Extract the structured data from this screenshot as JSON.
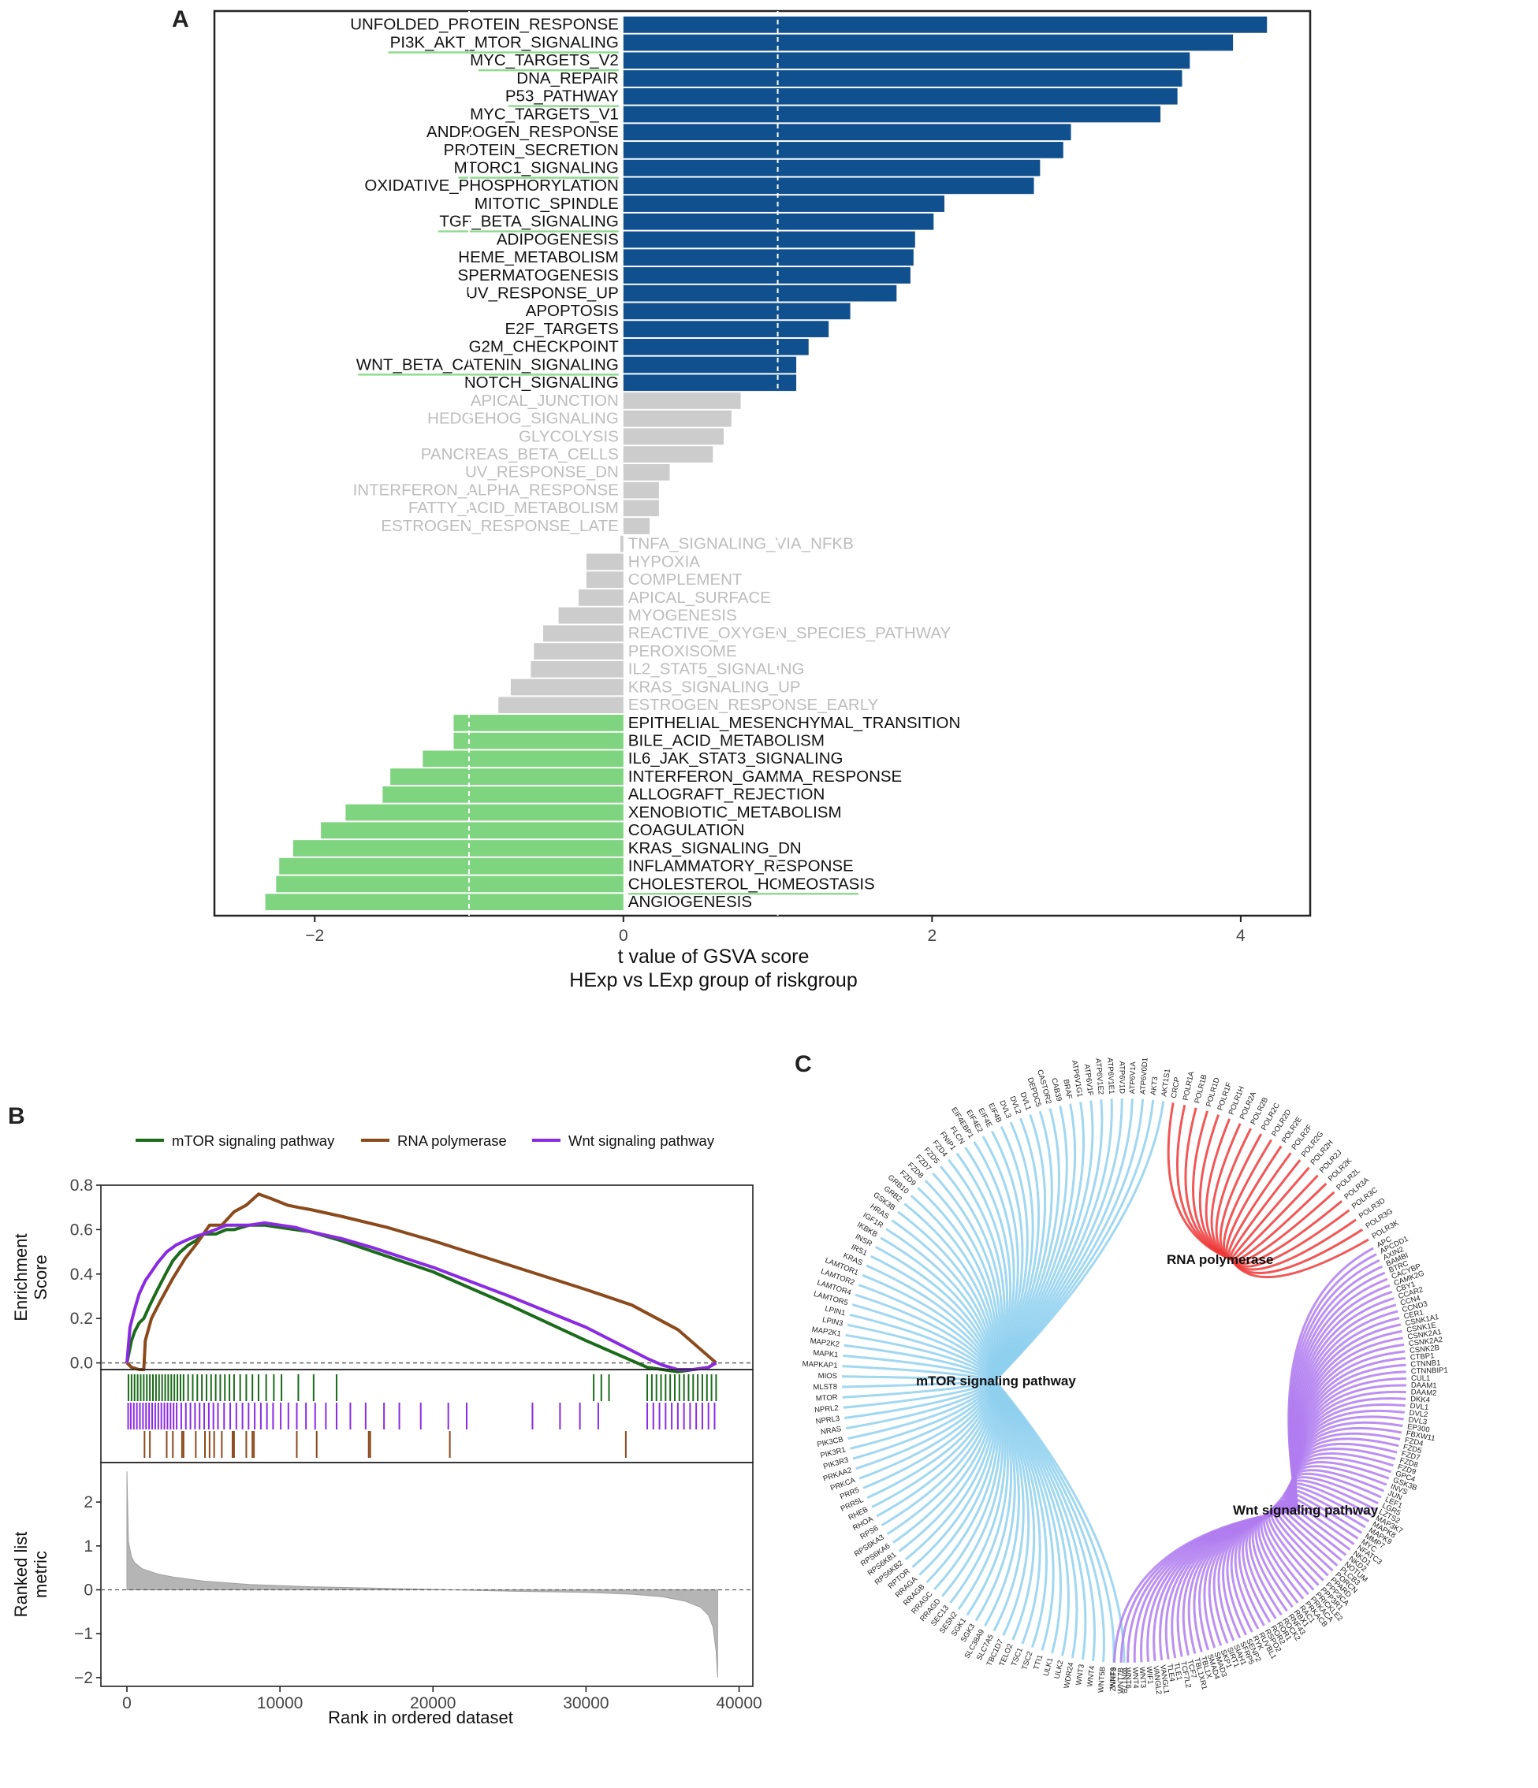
{
  "panels": {
    "a": "A",
    "b": "B",
    "c": "C"
  },
  "colors": {
    "up": "#11508f",
    "down": "#7fd47f",
    "ns": "#cccccc",
    "ns_text": "#bdbdbd",
    "mtor": "#1b6b1b",
    "rna": "#8b4a1c",
    "wnt": "#8a2be2",
    "c_mtor": "#8fd0ee",
    "c_rna": "#ee3a3a",
    "c_wnt": "#b07cf0",
    "underline": "#8fdc8f"
  },
  "chart_data": [
    {
      "type": "bar",
      "orientation": "horizontal",
      "xlabel": "t value of GSVA score",
      "xlabel2": "HExp vs LExp group of riskgroup",
      "xlim": [
        -2.65,
        4.45
      ],
      "xticks": [
        -2,
        0,
        2,
        4
      ],
      "tick_labels": [
        "−2",
        "0",
        "2",
        "4"
      ],
      "threshold_lines": [
        -1,
        1
      ],
      "categories": [
        "UNFOLDED_PROTEIN_RESPONSE",
        "PI3K_AKT_MTOR_SIGNALING",
        "MYC_TARGETS_V2",
        "DNA_REPAIR",
        "P53_PATHWAY",
        "MYC_TARGETS_V1",
        "ANDROGEN_RESPONSE",
        "PROTEIN_SECRETION",
        "MTORC1_SIGNALING",
        "OXIDATIVE_PHOSPHORYLATION",
        "MITOTIC_SPINDLE",
        "TGF_BETA_SIGNALING",
        "ADIPOGENESIS",
        "HEME_METABOLISM",
        "SPERMATOGENESIS",
        "UV_RESPONSE_UP",
        "APOPTOSIS",
        "E2F_TARGETS",
        "G2M_CHECKPOINT",
        "WNT_BETA_CATENIN_SIGNALING",
        "NOTCH_SIGNALING",
        "APICAL_JUNCTION",
        "HEDGEHOG_SIGNALING",
        "GLYCOLYSIS",
        "PANCREAS_BETA_CELLS",
        "UV_RESPONSE_DN",
        "INTERFERON_ALPHA_RESPONSE",
        "FATTY_ACID_METABOLISM",
        "ESTROGEN_RESPONSE_LATE",
        "TNFA_SIGNALING_VIA_NFKB",
        "HYPOXIA",
        "COMPLEMENT",
        "APICAL_SURFACE",
        "MYOGENESIS",
        "REACTIVE_OXYGEN_SPECIES_PATHWAY",
        "PEROXISOME",
        "IL2_STAT5_SIGNALING",
        "KRAS_SIGNALING_UP",
        "ESTROGEN_RESPONSE_EARLY",
        "EPITHELIAL_MESENCHYMAL_TRANSITION",
        "BILE_ACID_METABOLISM",
        "IL6_JAK_STAT3_SIGNALING",
        "INTERFERON_GAMMA_RESPONSE",
        "ALLOGRAFT_REJECTION",
        "XENOBIOTIC_METABOLISM",
        "COAGULATION",
        "KRAS_SIGNALING_DN",
        "INFLAMMATORY_RESPONSE",
        "CHOLESTEROL_HOMEOSTASIS",
        "ANGIOGENESIS"
      ],
      "values": [
        4.17,
        3.95,
        3.67,
        3.62,
        3.59,
        3.48,
        2.9,
        2.85,
        2.7,
        2.66,
        2.08,
        2.01,
        1.89,
        1.88,
        1.86,
        1.77,
        1.47,
        1.33,
        1.2,
        1.12,
        1.12,
        0.76,
        0.7,
        0.65,
        0.58,
        0.3,
        0.23,
        0.23,
        0.17,
        -0.02,
        -0.24,
        -0.24,
        -0.29,
        -0.42,
        -0.52,
        -0.58,
        -0.6,
        -0.73,
        -0.81,
        -1.1,
        -1.1,
        -1.3,
        -1.51,
        -1.56,
        -1.8,
        -1.96,
        -2.14,
        -2.23,
        -2.25,
        -2.32
      ],
      "groups": [
        "up",
        "up",
        "up",
        "up",
        "up",
        "up",
        "up",
        "up",
        "up",
        "up",
        "up",
        "up",
        "up",
        "up",
        "up",
        "up",
        "up",
        "up",
        "up",
        "up",
        "up",
        "ns",
        "ns",
        "ns",
        "ns",
        "ns",
        "ns",
        "ns",
        "ns",
        "ns",
        "ns",
        "ns",
        "ns",
        "ns",
        "ns",
        "ns",
        "ns",
        "ns",
        "ns",
        "down",
        "down",
        "down",
        "down",
        "down",
        "down",
        "down",
        "down",
        "down",
        "down",
        "down"
      ],
      "underlined": [
        "PI3K_AKT_MTOR_SIGNALING",
        "MYC_TARGETS_V2",
        "P53_PATHWAY",
        "MTORC1_SIGNALING",
        "TGF_BETA_SIGNALING",
        "WNT_BETA_CATENIN_SIGNALING",
        "CHOLESTEROL_HOMEOSTASIS"
      ]
    },
    {
      "type": "line",
      "legend": [
        "mTOR signaling pathway",
        "RNA polymerase",
        "Wnt signaling pathway"
      ],
      "legend_position": "top",
      "ylabel": "Enrichment\nScore",
      "ylim": [
        -0.03,
        0.8
      ],
      "yticks": [
        0.0,
        0.2,
        0.4,
        0.6,
        0.8
      ],
      "ytick_labels": [
        "0.0",
        "0.2",
        "0.4",
        "0.6",
        "0.8"
      ],
      "xlim": [
        -1700,
        40900
      ],
      "series": [
        {
          "name": "mTOR signaling pathway",
          "key": "mtor",
          "x": [
            0,
            300,
            500,
            800,
            1100,
            1500,
            2000,
            2600,
            3000,
            3500,
            4000,
            4500,
            5000,
            5800,
            6500,
            7000,
            8000,
            9000,
            10000,
            11000,
            12000,
            13000,
            14000,
            20000,
            25000,
            30000,
            34000,
            35000,
            36000,
            37000,
            38000,
            38500
          ],
          "y": [
            0,
            0.1,
            0.14,
            0.18,
            0.2,
            0.26,
            0.33,
            0.41,
            0.46,
            0.5,
            0.53,
            0.55,
            0.58,
            0.58,
            0.6,
            0.6,
            0.62,
            0.62,
            0.61,
            0.6,
            0.59,
            0.57,
            0.55,
            0.41,
            0.26,
            0.1,
            -0.02,
            -0.03,
            -0.04,
            -0.03,
            -0.02,
            0
          ]
        },
        {
          "name": "RNA polymerase",
          "key": "rna",
          "x": [
            0,
            300,
            800,
            1100,
            1200,
            1600,
            2200,
            3000,
            3800,
            4600,
            5400,
            6200,
            7000,
            7800,
            8600,
            9400,
            10500,
            11200,
            12000,
            14000,
            17000,
            20000,
            25000,
            30000,
            33000,
            36000,
            38500
          ],
          "y": [
            0,
            -0.02,
            -0.03,
            -0.03,
            0.1,
            0.2,
            0.28,
            0.38,
            0.47,
            0.54,
            0.62,
            0.62,
            0.68,
            0.71,
            0.76,
            0.74,
            0.71,
            0.7,
            0.69,
            0.66,
            0.61,
            0.55,
            0.44,
            0.33,
            0.26,
            0.15,
            0
          ]
        },
        {
          "name": "Wnt signaling pathway",
          "key": "wnt",
          "x": [
            0,
            200,
            500,
            800,
            1200,
            1600,
            2000,
            2600,
            3200,
            3800,
            4500,
            5000,
            5800,
            6500,
            7500,
            8000,
            9000,
            10000,
            11000,
            12000,
            14000,
            16000,
            20000,
            25000,
            30000,
            34000,
            35000,
            36000,
            37000,
            38000,
            38500
          ],
          "y": [
            0,
            0.16,
            0.24,
            0.31,
            0.37,
            0.41,
            0.45,
            0.5,
            0.53,
            0.55,
            0.57,
            0.58,
            0.6,
            0.62,
            0.62,
            0.62,
            0.63,
            0.62,
            0.61,
            0.59,
            0.56,
            0.52,
            0.43,
            0.3,
            0.16,
            0.02,
            -0.01,
            -0.03,
            -0.03,
            -0.02,
            0
          ]
        }
      ],
      "hit_tracks": [
        {
          "key": "mtor",
          "positions": [
            100,
            300,
            500,
            700,
            900,
            1100,
            1300,
            1500,
            1700,
            1900,
            2100,
            2300,
            2500,
            2700,
            2900,
            3100,
            3300,
            3500,
            3700,
            4000,
            4300,
            4600,
            4900,
            5200,
            5500,
            5800,
            6100,
            6400,
            6700,
            7000,
            7400,
            7800,
            8200,
            8600,
            9100,
            9600,
            10100,
            11200,
            12200,
            13700,
            30500,
            31000,
            31500,
            34000,
            34300,
            34600,
            34900,
            35200,
            35500,
            35800,
            36100,
            36400,
            36700,
            37000,
            37300,
            37600,
            37900,
            38200,
            38500
          ]
        },
        {
          "key": "wnt",
          "positions": [
            80,
            250,
            450,
            650,
            850,
            1050,
            1250,
            1450,
            1650,
            1850,
            2050,
            2250,
            2450,
            2650,
            2850,
            3050,
            3250,
            3550,
            3850,
            4150,
            4450,
            4750,
            5050,
            5350,
            5650,
            5950,
            6350,
            6750,
            7150,
            7550,
            7950,
            8350,
            8750,
            9150,
            9550,
            10050,
            10550,
            11100,
            11700,
            12300,
            13000,
            13700,
            14600,
            15600,
            16800,
            17800,
            19200,
            21000,
            22200,
            26500,
            28300,
            29600,
            30800,
            34000,
            34400,
            34800,
            35200,
            35600,
            36000,
            36400,
            36800,
            37200,
            37600,
            38000,
            38400
          ]
        },
        {
          "key": "rna",
          "positions": [
            1150,
            1500,
            2600,
            3000,
            3600,
            3700,
            4500,
            5100,
            5400,
            5700,
            6200,
            6900,
            7000,
            7800,
            8200,
            8300,
            11100,
            12400,
            15800,
            15900,
            21100,
            32600
          ]
        }
      ],
      "metric": {
        "ylabel": "Ranked list\nmetric",
        "ylim": [
          -2.2,
          2.9
        ],
        "yticks": [
          -2,
          -1,
          0,
          1,
          2
        ],
        "ytick_labels": [
          "−2",
          "−1",
          "0",
          "1",
          "2"
        ],
        "xlabel": "Rank in ordered dataset",
        "xticks": [
          0,
          10000,
          20000,
          30000,
          40000
        ],
        "xtick_labels": [
          "0",
          "10000",
          "20000",
          "30000",
          "40000"
        ],
        "x": [
          0,
          100,
          300,
          500,
          1000,
          2000,
          3000,
          5000,
          8000,
          12000,
          16000,
          20000,
          25000,
          30000,
          33000,
          35000,
          36500,
          37500,
          38000,
          38300,
          38500,
          38600
        ],
        "y": [
          2.7,
          1.1,
          0.75,
          0.62,
          0.48,
          0.36,
          0.29,
          0.2,
          0.12,
          0.07,
          0.04,
          0.01,
          -0.03,
          -0.06,
          -0.1,
          -0.16,
          -0.26,
          -0.4,
          -0.58,
          -0.85,
          -1.4,
          -2.0
        ]
      }
    },
    {
      "type": "diagram",
      "hubs": [
        {
          "key": "mtor",
          "label": "mTOR signaling pathway"
        },
        {
          "key": "rna",
          "label": "RNA polymerase"
        },
        {
          "key": "wnt",
          "label": "Wnt signaling pathway"
        }
      ],
      "genes_mtor": [
        "WNT7B",
        "WNT6",
        "WNT5B",
        "WNT4",
        "WNT3",
        "WDR24",
        "ULK2",
        "ULK1",
        "TTI1",
        "TSC2",
        "TSC1",
        "TELO2",
        "TBC1D7",
        "SLC7A5",
        "SLC38A9",
        "SGK3",
        "SGK1",
        "SESN2",
        "SEC13",
        "RRAGD",
        "RRAGC",
        "RRAGB",
        "RRAGA",
        "RPTOR",
        "RPS6KB2",
        "RPS6KB1",
        "RPS6KA6",
        "RPS6KA3",
        "RPS6",
        "RHOA",
        "RHEB",
        "PRR5L",
        "PRR5",
        "PRKCA",
        "PRKAA2",
        "PIK3R3",
        "PIK3R1",
        "PIK3CB",
        "NRAS",
        "NPRL3",
        "NPRL2",
        "MTOR",
        "MLST8",
        "MIOS",
        "MAPKAP1",
        "MAPK1",
        "MAP2K2",
        "MAP2K1",
        "LPIN3",
        "LPIN1",
        "LAMTOR5",
        "LAMTOR4",
        "LAMTOR2",
        "LAMTOR1",
        "KRAS",
        "IRS1",
        "INSR",
        "IKBKB",
        "IGF1R",
        "HRAS",
        "GSK3B",
        "GRB2",
        "GRB10",
        "FZD9",
        "FZD8",
        "FZD7",
        "FZD5",
        "FZD4",
        "FNIP1",
        "FLCN",
        "EIF4EBP1",
        "EIF4E2",
        "EIF4E",
        "EIF4B",
        "DVL3",
        "DVL2",
        "DVL1",
        "DEPDC5",
        "CASTOR2",
        "CAB39",
        "BRAF",
        "ATP6V1G1",
        "ATP6V1F",
        "ATP6V1E2",
        "ATP6V1E1",
        "ATP6V1D",
        "ATP6V1A",
        "ATP6V0D1",
        "AKT3",
        "AKT1S1"
      ],
      "genes_rna": [
        "CRCP",
        "POLR1A",
        "POLR1B",
        "POLR1D",
        "POLR1F",
        "POLR1H",
        "POLR2A",
        "POLR2B",
        "POLR2C",
        "POLR2D",
        "POLR2E",
        "POLR2F",
        "POLR2G",
        "POLR2H",
        "POLR2J",
        "POLR2K",
        "POLR2L",
        "POLR3A",
        "POLR3C",
        "POLR3D",
        "POLR3G",
        "POLR3K"
      ],
      "genes_wnt": [
        "APC",
        "APCDD1",
        "AXIN2",
        "BAMBI",
        "BTRC",
        "CACYBP",
        "CAMK2G",
        "CBY1",
        "CCAR2",
        "CCN4",
        "CCND3",
        "CER1",
        "CSNK1A1",
        "CSNK1E",
        "CSNK2A1",
        "CSNK2A2",
        "CSNK2B",
        "CTBP1",
        "CTNNB1",
        "CTNNBIP1",
        "CUL1",
        "DAAM1",
        "DAAM2",
        "DKK4",
        "DVL1",
        "DVL2",
        "DVL3",
        "EP300",
        "FBXW11",
        "FZD4",
        "FZD5",
        "FZD7",
        "FZD8",
        "FZD9",
        "GPC4",
        "GSK3B",
        "INVS",
        "JUN",
        "LEF1",
        "LGR5",
        "LZTS2",
        "MAP3K7",
        "MAPK8",
        "MAPK9",
        "MMP7",
        "MYC",
        "NFATC3",
        "NKD1",
        "NKD2",
        "NOTUM",
        "PLCB3",
        "PORCN",
        "PPARD",
        "PPP3CA",
        "PPP3R1",
        "PRICKLE2",
        "PRKACA",
        "PRKACB",
        "RAC1",
        "RBX1",
        "RNF43",
        "ROCK2",
        "ROR1",
        "ROR2",
        "RSPO2",
        "RUVBL1",
        "RYK",
        "SENP2",
        "SFRP5",
        "SIAH1",
        "SIRT1",
        "SKP1",
        "SMAD3",
        "SMAD4",
        "TBL1X",
        "TBL1XR1",
        "TCF7",
        "TCF7L2",
        "TLE1",
        "TLE4",
        "VANGL1",
        "VANGL2",
        "WIF1",
        "WNT3",
        "WNT4",
        "WNT6",
        "WNT7B",
        "ZNRF3"
      ]
    }
  ]
}
